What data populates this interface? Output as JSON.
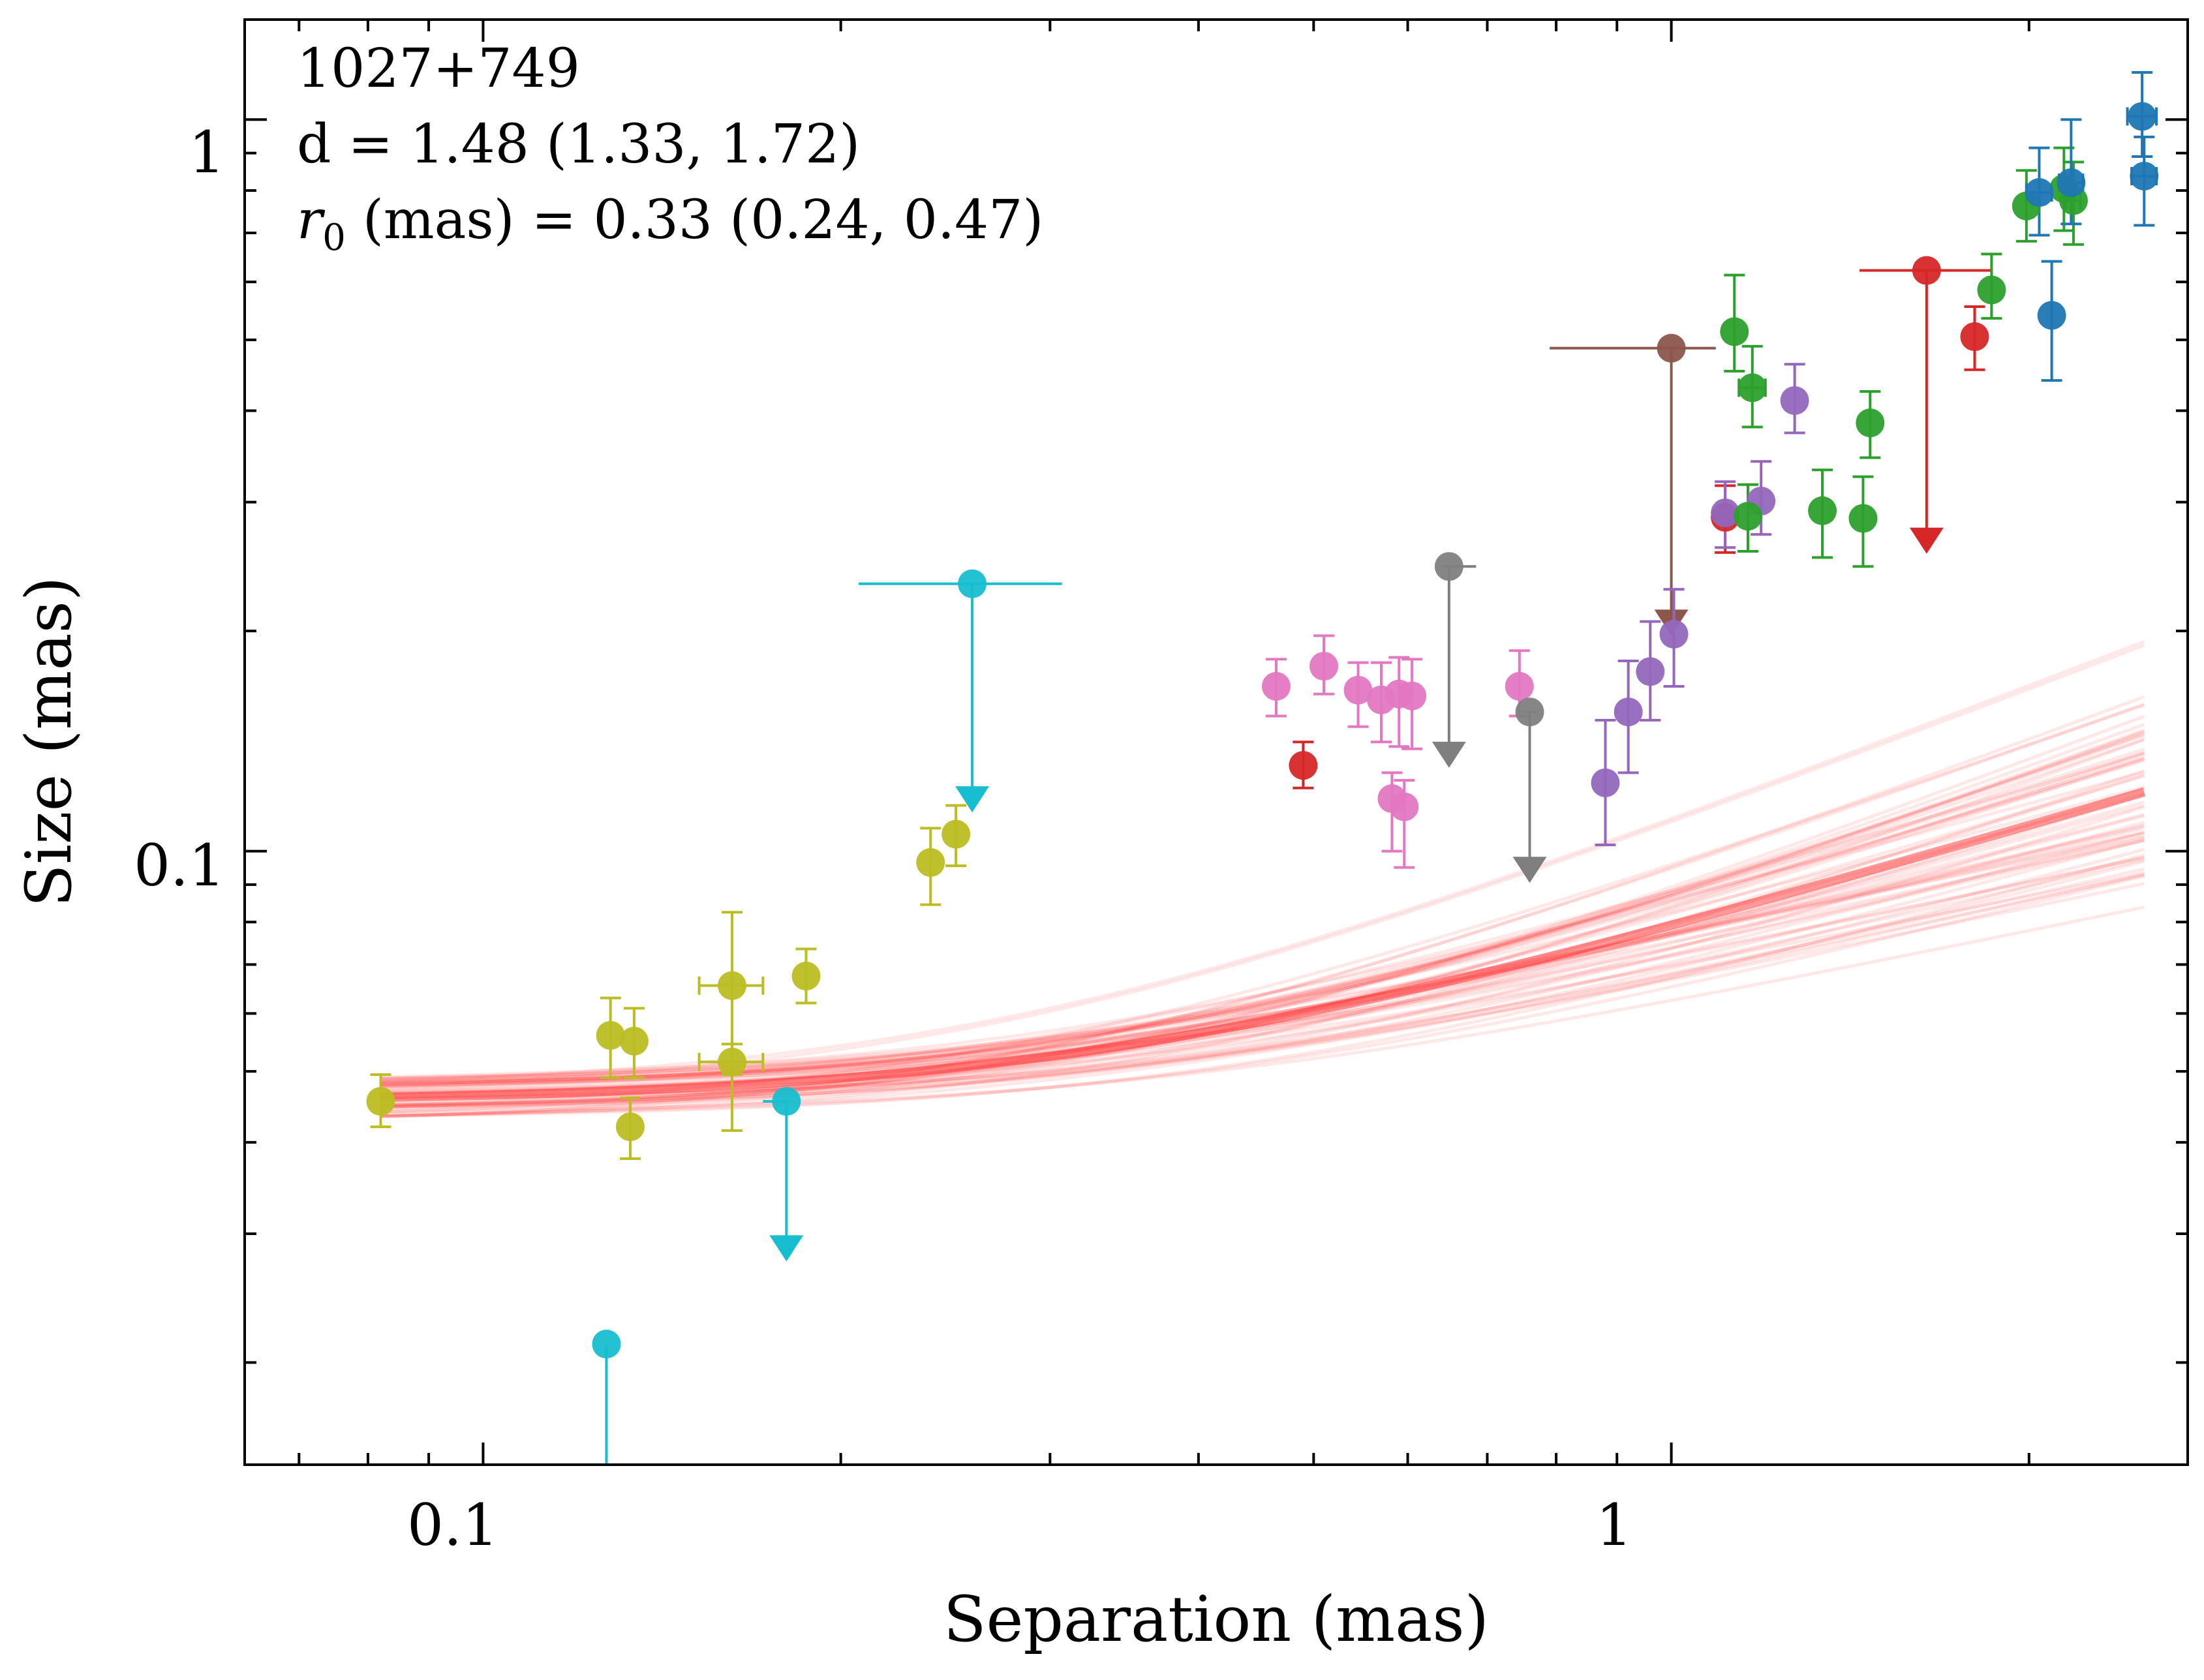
{
  "chart_data": {
    "type": "scatter",
    "title": "",
    "xlabel": "Separation (mas)",
    "ylabel": "Size (mas)",
    "xscale": "log",
    "yscale": "log",
    "xlim": [
      0.063,
      2.72
    ],
    "ylim": [
      0.0145,
      1.37
    ],
    "x_ticks": [
      {
        "value": 0.1,
        "label": "0.1"
      },
      {
        "value": 1,
        "label": "1"
      }
    ],
    "y_ticks": [
      {
        "value": 0.1,
        "label": "0.1"
      },
      {
        "value": 1,
        "label": "1"
      }
    ],
    "annotations": {
      "source": "1027+749",
      "d_line": "d = 1.48 (1.33, 1.72)",
      "r0_prefix": "r",
      "r0_sub": "0",
      "r0_rest": " (mas) = 0.33 (0.24, 0.47)"
    },
    "fit": {
      "d": 1.48,
      "r0": 0.33,
      "amplitude": 0.4,
      "color": "#ff1a1a",
      "x_range": [
        0.082,
        2.5
      ]
    },
    "series": [
      {
        "name": "olive",
        "color": "#bcbd22",
        "points": [
          {
            "x": 0.082,
            "y": 0.0455,
            "yerr": [
              0.0035,
              0.004
            ]
          },
          {
            "x": 0.133,
            "y": 0.042,
            "yerr": [
              0.004,
              0.004
            ]
          },
          {
            "x": 0.162,
            "y": 0.0655,
            "yerr": [
              0.016,
              0.017
            ],
            "xerr": [
              0.01,
              0.01
            ]
          },
          {
            "x": 0.162,
            "y": 0.0515,
            "yerr": [
              0.01,
              0.003
            ],
            "xerr": [
              0.01,
              0.01
            ]
          },
          {
            "x": 0.187,
            "y": 0.0675,
            "yerr": [
              0.0055,
              0.006
            ]
          },
          {
            "x": 0.238,
            "y": 0.0965,
            "yerr": [
              0.012,
              0.011
            ]
          },
          {
            "x": 0.25,
            "y": 0.1055,
            "yerr": [
              0.01,
              0.01
            ]
          },
          {
            "x": 0.128,
            "y": 0.056,
            "yerr": [
              0.007,
              0.007
            ]
          },
          {
            "x": 0.134,
            "y": 0.055,
            "yerr": [
              0.006,
              0.006
            ]
          }
        ]
      },
      {
        "name": "cyan",
        "color": "#17becf",
        "limits": true,
        "points": [
          {
            "x": 0.258,
            "y": 0.232,
            "arrow_to": 0.113,
            "xerr": [
              0.051,
              0.049
            ]
          },
          {
            "x": 0.18,
            "y": 0.0455,
            "arrow_to": 0.0275,
            "xerr": [
              0.008,
              0.0
            ]
          },
          {
            "x": 0.127,
            "y": 0.0212,
            "arrow_to": 0.0145
          }
        ]
      },
      {
        "name": "pink",
        "color": "#e377c2",
        "points": [
          {
            "x": 0.465,
            "y": 0.168,
            "yerr": [
              0.015,
              0.015
            ]
          },
          {
            "x": 0.51,
            "y": 0.179,
            "yerr": [
              0.015,
              0.018
            ]
          },
          {
            "x": 0.545,
            "y": 0.166,
            "yerr": [
              0.018,
              0.015
            ]
          },
          {
            "x": 0.57,
            "y": 0.161,
            "yerr": [
              0.02,
              0.02
            ]
          },
          {
            "x": 0.59,
            "y": 0.164,
            "yerr": [
              0.025,
              0.02
            ]
          },
          {
            "x": 0.605,
            "y": 0.163,
            "yerr": [
              0.025,
              0.02
            ]
          },
          {
            "x": 0.582,
            "y": 0.118,
            "yerr": [
              0.018,
              0.01
            ]
          },
          {
            "x": 0.596,
            "y": 0.115,
            "yerr": [
              0.02,
              0.01
            ]
          },
          {
            "x": 0.745,
            "y": 0.168,
            "yerr": [
              0.015,
              0.02
            ]
          }
        ]
      },
      {
        "name": "crimson",
        "color": "#d62728",
        "points": [
          {
            "x": 0.49,
            "y": 0.131,
            "yerr": [
              0.009,
              0.01
            ]
          },
          {
            "x": 1.11,
            "y": 0.286,
            "yerr": [
              0.03,
              0.03
            ]
          },
          {
            "x": 1.8,
            "y": 0.505,
            "yerr": [
              0.05,
              0.05
            ]
          }
        ]
      },
      {
        "name": "red-limit",
        "color": "#d62728",
        "limits": true,
        "points": [
          {
            "x": 1.64,
            "y": 0.622,
            "arrow_to": 0.255,
            "xerr": [
              0.2,
              0.22
            ]
          }
        ]
      },
      {
        "name": "grey",
        "color": "#7f7f7f",
        "limits": true,
        "points": [
          {
            "x": 0.65,
            "y": 0.245,
            "arrow_to": 0.13,
            "xerr": [
              0.01,
              0.035
            ]
          },
          {
            "x": 0.76,
            "y": 0.155,
            "arrow_to": 0.0905,
            "xerr": [
              0.01,
              0.01
            ]
          }
        ]
      },
      {
        "name": "brown",
        "color": "#8c564b",
        "limits": true,
        "points": [
          {
            "x": 1.0,
            "y": 0.487,
            "arrow_to": 0.197,
            "xerr": [
              0.21,
              0.09
            ]
          }
        ]
      },
      {
        "name": "purple",
        "color": "#9467bd",
        "points": [
          {
            "x": 0.88,
            "y": 0.124,
            "yerr": [
              0.022,
              0.027
            ]
          },
          {
            "x": 0.92,
            "y": 0.155,
            "yerr": [
              0.027,
              0.027
            ]
          },
          {
            "x": 0.96,
            "y": 0.176,
            "yerr": [
              0.025,
              0.03
            ]
          },
          {
            "x": 1.005,
            "y": 0.198,
            "yerr": [
              0.03,
              0.03
            ]
          },
          {
            "x": 1.11,
            "y": 0.29,
            "yerr": [
              0.03,
              0.03
            ]
          },
          {
            "x": 1.19,
            "y": 0.301,
            "yerr": [
              0.03,
              0.04
            ]
          },
          {
            "x": 1.27,
            "y": 0.413,
            "yerr": [
              0.04,
              0.05
            ]
          }
        ]
      },
      {
        "name": "green",
        "color": "#2ca02c",
        "points": [
          {
            "x": 1.13,
            "y": 0.513,
            "yerr": [
              0.06,
              0.1
            ]
          },
          {
            "x": 1.16,
            "y": 0.287,
            "yerr": [
              0.03,
              0.03
            ]
          },
          {
            "x": 1.17,
            "y": 0.43,
            "yerr": [
              0.05,
              0.06
            ],
            "xerr": [
              0.03,
              0.03
            ]
          },
          {
            "x": 1.34,
            "y": 0.292,
            "yerr": [
              0.04,
              0.04
            ]
          },
          {
            "x": 1.45,
            "y": 0.285,
            "yerr": [
              0.04,
              0.04
            ]
          },
          {
            "x": 1.47,
            "y": 0.385,
            "yerr": [
              0.04,
              0.04
            ]
          },
          {
            "x": 1.86,
            "y": 0.585,
            "yerr": [
              0.05,
              0.07
            ]
          },
          {
            "x": 1.99,
            "y": 0.762,
            "yerr": [
              0.08,
              0.09
            ]
          },
          {
            "x": 2.14,
            "y": 0.805,
            "yerr": [
              0.1,
              0.11
            ]
          },
          {
            "x": 2.18,
            "y": 0.775,
            "yerr": [
              0.1,
              0.1
            ],
            "xerr": [
              0.03,
              0.03
            ]
          }
        ]
      },
      {
        "name": "blue",
        "color": "#1f77b4",
        "points": [
          {
            "x": 2.04,
            "y": 0.795,
            "yerr": [
              0.1,
              0.12
            ],
            "xerr": [
              0.05,
              0.05
            ]
          },
          {
            "x": 2.09,
            "y": 0.54,
            "yerr": [
              0.1,
              0.1
            ]
          },
          {
            "x": 2.17,
            "y": 0.82,
            "yerr": [
              0.1,
              0.18
            ],
            "xerr": [
              0.05,
              0.05
            ]
          },
          {
            "x": 2.49,
            "y": 1.01,
            "yerr": [
              0.12,
              0.15
            ],
            "xerr": [
              0.07,
              0.07
            ]
          },
          {
            "x": 2.5,
            "y": 0.837,
            "yerr": [
              0.12,
              0.11
            ],
            "xerr": [
              0.06,
              0.06
            ]
          }
        ]
      }
    ]
  }
}
